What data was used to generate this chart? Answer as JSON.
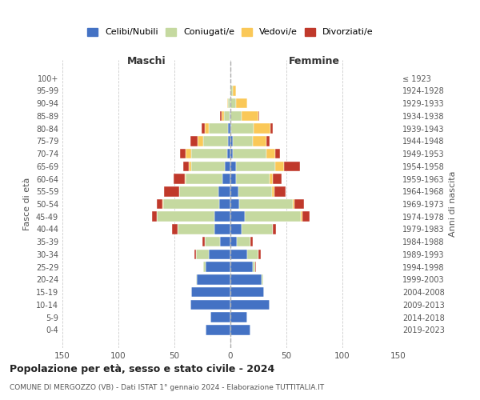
{
  "age_groups": [
    "100+",
    "95-99",
    "90-94",
    "85-89",
    "80-84",
    "75-79",
    "70-74",
    "65-69",
    "60-64",
    "55-59",
    "50-54",
    "45-49",
    "40-44",
    "35-39",
    "30-34",
    "25-29",
    "20-24",
    "15-19",
    "10-14",
    "5-9",
    "0-4"
  ],
  "birth_years": [
    "≤ 1923",
    "1924-1928",
    "1929-1933",
    "1934-1938",
    "1939-1943",
    "1944-1948",
    "1949-1953",
    "1954-1958",
    "1959-1963",
    "1964-1968",
    "1969-1973",
    "1974-1978",
    "1979-1983",
    "1984-1988",
    "1989-1993",
    "1994-1998",
    "1999-2003",
    "2004-2008",
    "2009-2013",
    "2014-2018",
    "2019-2023"
  ],
  "colors": {
    "celibi": "#4472c4",
    "coniugati": "#c5d9a0",
    "vedovi": "#fac858",
    "divorziati": "#c0392b"
  },
  "male": {
    "celibi": [
      0,
      0,
      0,
      1,
      2,
      2,
      3,
      5,
      7,
      11,
      10,
      14,
      14,
      9,
      19,
      22,
      30,
      35,
      36,
      18,
      22
    ],
    "coniugati": [
      0,
      0,
      2,
      5,
      17,
      22,
      32,
      30,
      33,
      35,
      50,
      52,
      33,
      14,
      12,
      2,
      1,
      0,
      0,
      0,
      0
    ],
    "vedovi": [
      0,
      0,
      1,
      2,
      4,
      5,
      5,
      2,
      1,
      0,
      1,
      0,
      0,
      0,
      0,
      0,
      0,
      0,
      0,
      0,
      0
    ],
    "divorziati": [
      0,
      0,
      0,
      1,
      3,
      7,
      5,
      5,
      10,
      13,
      5,
      4,
      5,
      2,
      1,
      0,
      0,
      0,
      0,
      0,
      0
    ]
  },
  "female": {
    "nubili": [
      0,
      0,
      0,
      0,
      1,
      2,
      2,
      5,
      5,
      7,
      8,
      13,
      10,
      6,
      15,
      20,
      28,
      30,
      35,
      15,
      18
    ],
    "coniugate": [
      0,
      2,
      5,
      10,
      20,
      18,
      30,
      35,
      30,
      30,
      48,
      50,
      28,
      12,
      10,
      2,
      1,
      0,
      0,
      0,
      0
    ],
    "vedove": [
      0,
      3,
      10,
      15,
      15,
      12,
      8,
      8,
      3,
      2,
      1,
      1,
      0,
      0,
      0,
      0,
      0,
      0,
      0,
      0,
      0
    ],
    "divorziate": [
      0,
      0,
      0,
      1,
      2,
      3,
      4,
      14,
      8,
      10,
      9,
      7,
      3,
      2,
      2,
      1,
      0,
      0,
      0,
      0,
      0
    ]
  },
  "title": "Popolazione per età, sesso e stato civile - 2024",
  "subtitle": "COMUNE DI MERGOZZO (VB) - Dati ISTAT 1° gennaio 2024 - Elaborazione TUTTITALIA.IT",
  "xlabel_left": "Maschi",
  "xlabel_right": "Femmine",
  "ylabel_left": "Fasce di età",
  "ylabel_right": "Anni di nascita",
  "xlim": 150,
  "legend_labels": [
    "Celibi/Nubili",
    "Coniugati/e",
    "Vedovi/e",
    "Divorziati/e"
  ],
  "background_color": "#ffffff"
}
